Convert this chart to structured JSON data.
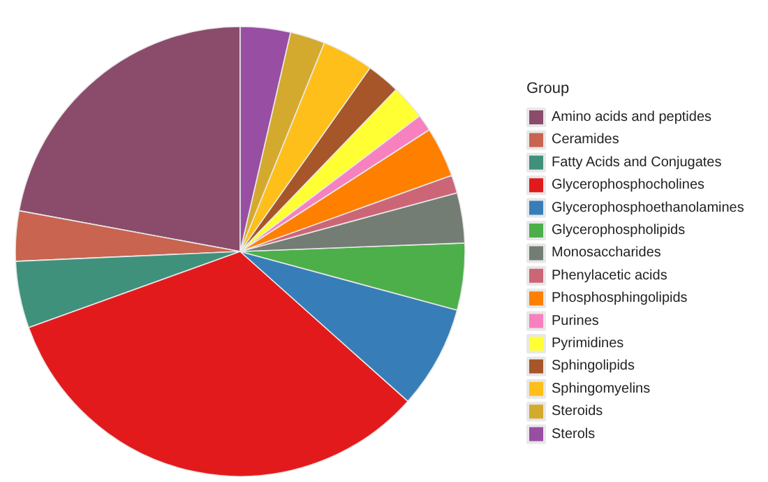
{
  "chart_data": {
    "type": "pie",
    "legend_title": "Group",
    "legend": "right",
    "categories": [
      "Amino acids and peptides",
      "Ceramides",
      "Fatty Acids and Conjugates",
      "Glycerophosphocholines",
      "Glycerophosphoethanolamines",
      "Glycerophospholipids",
      "Monosaccharides",
      "Phenylacetic acids",
      "Phosphosphingolipids",
      "Purines",
      "Pyrimidines",
      "Sphingolipids",
      "Sphingomyelins",
      "Steroids",
      "Sterols"
    ],
    "values": [
      22.1,
      3.6,
      4.8,
      32.9,
      7.4,
      4.8,
      3.6,
      1.3,
      3.6,
      1.2,
      2.5,
      2.4,
      3.7,
      2.5,
      3.6
    ],
    "colors": [
      "#8b4c6b",
      "#c8644f",
      "#3f917c",
      "#e31a1c",
      "#377eb8",
      "#4daf4a",
      "#737d74",
      "#cc6677",
      "#ff7f00",
      "#f781bf",
      "#ffff33",
      "#a65628",
      "#ffbf1a",
      "#d4aa2e",
      "#984ea3"
    ]
  }
}
